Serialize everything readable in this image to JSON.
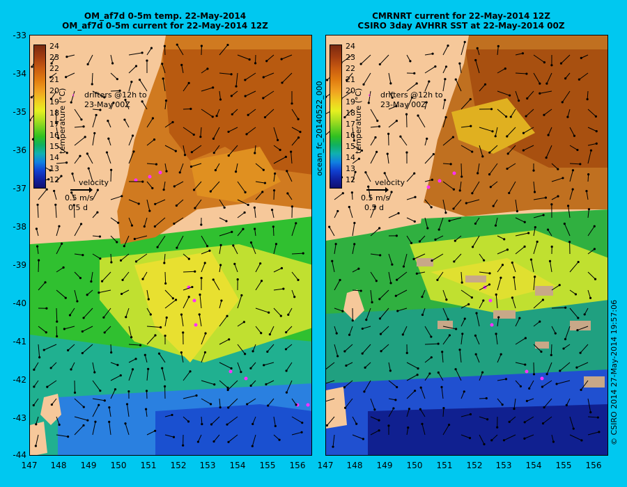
{
  "left_panel": {
    "title_line1": "OM_af7d 0-5m temp. 22-May-2014",
    "title_line2": "OM_af7d 0-5m current for 22-May-2014 12Z"
  },
  "right_panel": {
    "title_line1": "CMRNRT current for 22-May-2014 12Z",
    "title_line2": "CSIRO 3day AVHRR SST at 22-May-2014 00Z"
  },
  "y_axis_labels": [
    "-33",
    "-34",
    "-35",
    "-36",
    "-37",
    "-38",
    "-39",
    "-40",
    "-41",
    "-42",
    "-43",
    "-44"
  ],
  "x_axis_labels": [
    "147",
    "148",
    "149",
    "150",
    "151",
    "152",
    "153",
    "154",
    "155",
    "156"
  ],
  "colorbar": {
    "title": "temperature (°C)",
    "labels": [
      "24",
      "23",
      "22",
      "21",
      "20",
      "19",
      "18",
      "17",
      "16",
      "15",
      "14",
      "13",
      "12"
    ],
    "colors": [
      "#7a2a10",
      "#c85a10",
      "#f0a020",
      "#e6f020",
      "#30c020",
      "#10b0b0",
      "#1040d0",
      "#101070"
    ]
  },
  "legend": {
    "drifters_line1": "drifters @12h to",
    "drifters_line2": "23-May 00Z",
    "velocity_title": "velocity",
    "velocity_scale": "0.5 m/s",
    "velocity_time": "0.5 d"
  },
  "run_id": "ocean_fc_20140522_000",
  "stamp": "© CSIRO 2014   27-May-2014 19:57:06",
  "colors": {
    "background": "#00c8f0",
    "land": "#f6c89a",
    "drifter": "#ff30ff"
  }
}
